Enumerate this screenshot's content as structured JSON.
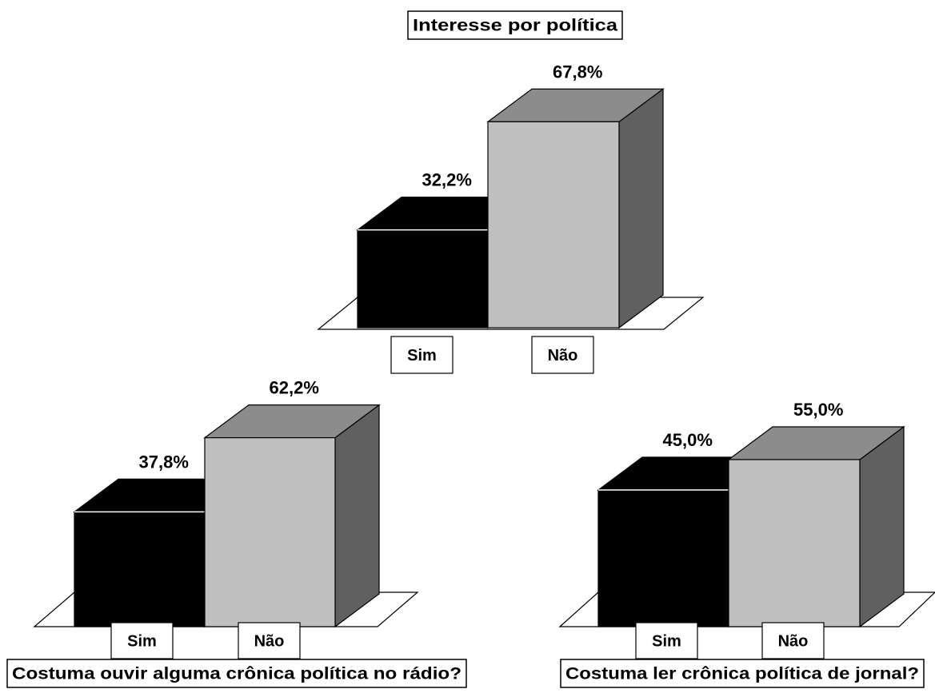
{
  "chart_data": [
    {
      "type": "bar",
      "title": "Interesse por política",
      "categories": [
        "Sim",
        "Não"
      ],
      "values": [
        32.2,
        67.8
      ],
      "value_labels": [
        "32,2%",
        "67,8%"
      ],
      "colors": [
        "#000000",
        "#c0c0c0"
      ],
      "style": "3d",
      "title_position": "top",
      "grid": false,
      "legend": false
    },
    {
      "type": "bar",
      "title": "Costuma ouvir alguma crônica política no rádio?",
      "categories": [
        "Sim",
        "Não"
      ],
      "values": [
        37.8,
        62.2
      ],
      "value_labels": [
        "37,8%",
        "62,2%"
      ],
      "colors": [
        "#000000",
        "#c0c0c0"
      ],
      "style": "3d",
      "title_position": "bottom",
      "grid": false,
      "legend": false
    },
    {
      "type": "bar",
      "title": "Costuma ler crônica política de jornal?",
      "categories": [
        "Sim",
        "Não"
      ],
      "values": [
        45.0,
        55.0
      ],
      "value_labels": [
        "45,0%",
        "55,0%"
      ],
      "colors": [
        "#000000",
        "#c0c0c0"
      ],
      "style": "3d",
      "title_position": "bottom",
      "grid": false,
      "legend": false
    }
  ]
}
